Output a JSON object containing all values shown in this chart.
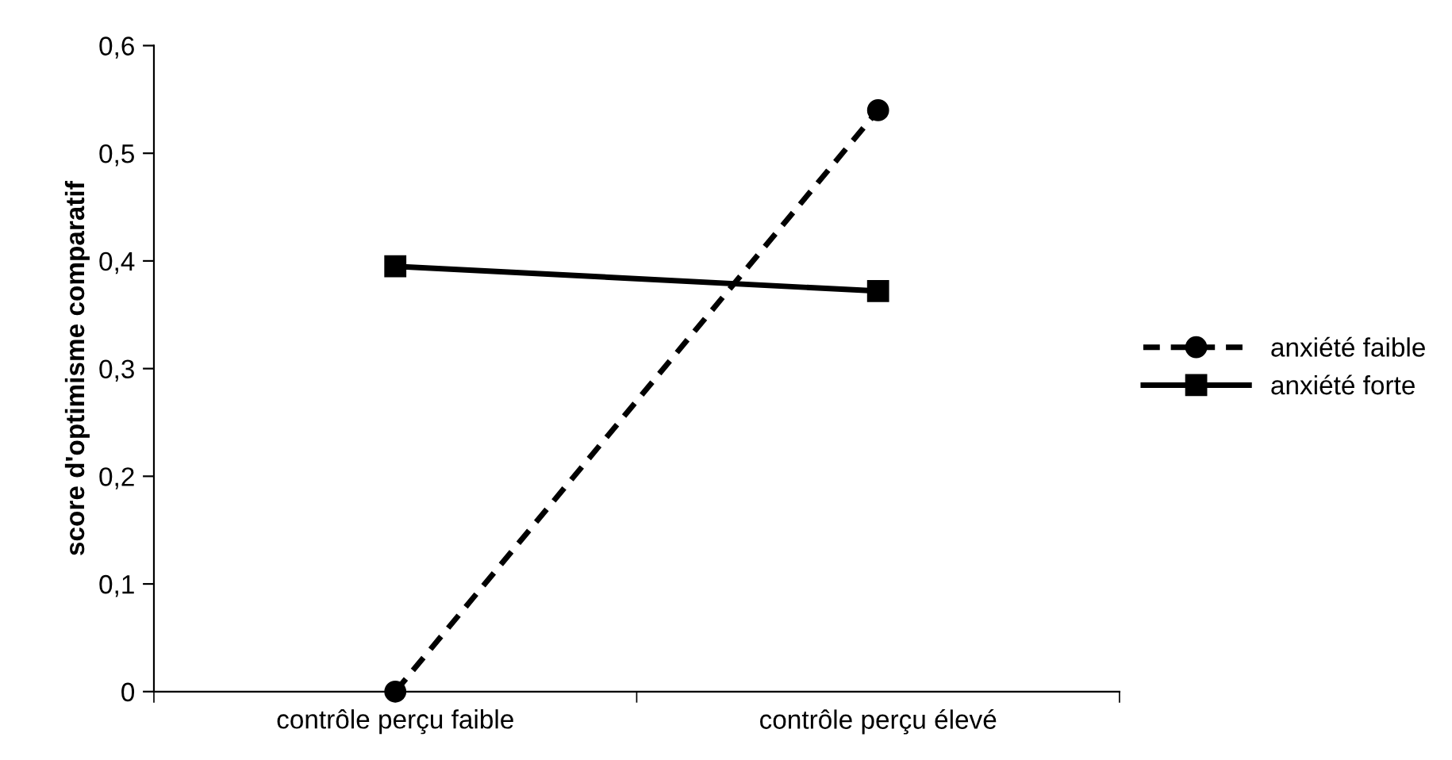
{
  "chart_data": {
    "type": "line",
    "ylabel": "score d'optimisme comparatif",
    "categories": [
      "contrôle perçu faible",
      "contrôle perçu élevé"
    ],
    "series": [
      {
        "name": "anxiété faible",
        "color": "#000000",
        "values": [
          0,
          0.54
        ],
        "marker": "circle",
        "line_style": "dashed"
      },
      {
        "name": "anxiété forte",
        "color": "#000000",
        "values": [
          0.395,
          0.372
        ],
        "marker": "square",
        "line_style": "solid"
      }
    ],
    "ylim": [
      0,
      0.6
    ],
    "yticks": [
      {
        "value": 0,
        "label": "0"
      },
      {
        "value": 0.1,
        "label": "0,1"
      },
      {
        "value": 0.2,
        "label": "0,2"
      },
      {
        "value": 0.3,
        "label": "0,3"
      },
      {
        "value": 0.4,
        "label": "0,4"
      },
      {
        "value": 0.5,
        "label": "0,5"
      },
      {
        "value": 0.6,
        "label": "0,6"
      }
    ],
    "grid": false,
    "legend": "right"
  }
}
